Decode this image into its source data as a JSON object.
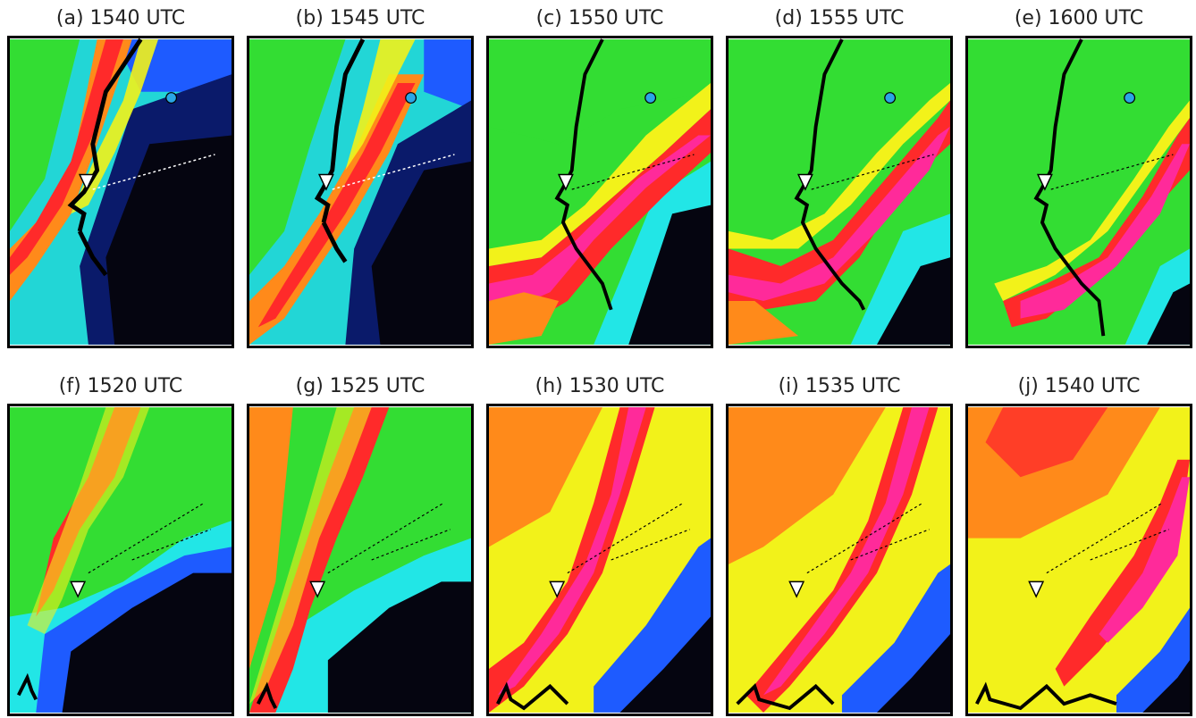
{
  "figure": {
    "panels": [
      {
        "label": "(a) 1540 UTC",
        "row": "top",
        "field": "top-a"
      },
      {
        "label": "(b) 1545 UTC",
        "row": "top",
        "field": "top-b"
      },
      {
        "label": "(c) 1550 UTC",
        "row": "top",
        "field": "top-c"
      },
      {
        "label": "(d) 1555 UTC",
        "row": "top",
        "field": "top-d"
      },
      {
        "label": "(e) 1600 UTC",
        "row": "top",
        "field": "top-e"
      },
      {
        "label": "(f) 1520 UTC",
        "row": "bottom",
        "field": "bot-f"
      },
      {
        "label": "(g) 1525 UTC",
        "row": "bottom",
        "field": "bot-g"
      },
      {
        "label": "(h) 1530 UTC",
        "row": "bottom",
        "field": "bot-h"
      },
      {
        "label": "(i) 1535 UTC",
        "row": "bottom",
        "field": "bot-i"
      },
      {
        "label": "(j) 1540 UTC",
        "row": "bottom",
        "field": "bot-j"
      }
    ],
    "colors": {
      "black": "#050510",
      "navy": "#0a1a6a",
      "blue": "#1e5bff",
      "cyan": "#22e6e6",
      "green": "#33dd33",
      "yellow": "#f2f21a",
      "orange": "#ff8a1a",
      "red": "#ff2a2a",
      "magenta": "#ff2a9a",
      "marker_fill": "#ffffff",
      "circle_fill": "#2aa6e6"
    }
  }
}
